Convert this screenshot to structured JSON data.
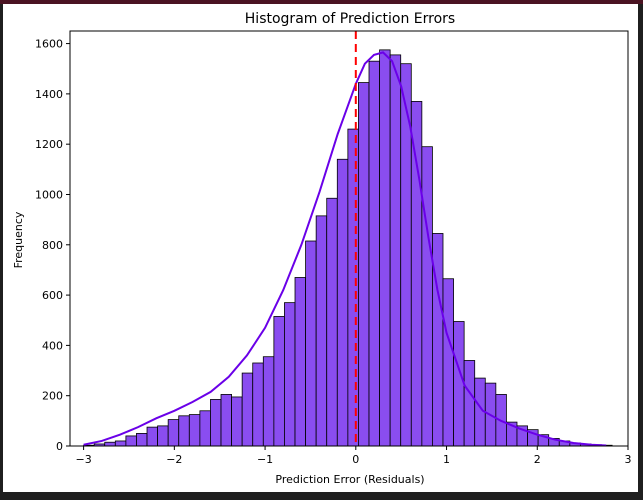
{
  "chart_data": {
    "type": "bar",
    "title": "Histogram of Prediction Errors",
    "xlabel": "Prediction Error (Residuals)",
    "ylabel": "Frequency",
    "xlim": [
      -3.15,
      3.0
    ],
    "ylim": [
      0,
      1650
    ],
    "xticks": [
      -3,
      -2,
      -1,
      0,
      1,
      2,
      3
    ],
    "xtick_labels": [
      "−3",
      "−2",
      "−1",
      "0",
      "1",
      "2",
      "3"
    ],
    "yticks": [
      0,
      200,
      400,
      600,
      800,
      1000,
      1200,
      1400,
      1600
    ],
    "ytick_labels": [
      "0",
      "200",
      "400",
      "600",
      "800",
      "1000",
      "1200",
      "1400",
      "1600"
    ],
    "grid": false,
    "bin_start": -3.0,
    "bin_width": 0.1165,
    "values": [
      3,
      8,
      15,
      20,
      40,
      50,
      75,
      80,
      105,
      120,
      125,
      140,
      185,
      205,
      195,
      290,
      330,
      355,
      515,
      570,
      670,
      815,
      915,
      985,
      1140,
      1260,
      1445,
      1530,
      1575,
      1555,
      1520,
      1370,
      1190,
      845,
      665,
      495,
      340,
      270,
      250,
      205,
      95,
      80,
      65,
      45,
      30,
      20,
      12,
      8,
      5,
      3
    ],
    "kde": {
      "x": [
        -3.0,
        -2.8,
        -2.6,
        -2.4,
        -2.2,
        -2.0,
        -1.8,
        -1.6,
        -1.4,
        -1.2,
        -1.0,
        -0.8,
        -0.6,
        -0.4,
        -0.2,
        0.0,
        0.1,
        0.2,
        0.3,
        0.4,
        0.5,
        0.6,
        0.7,
        0.8,
        0.9,
        1.0,
        1.2,
        1.4,
        1.6,
        1.8,
        2.0,
        2.2,
        2.4,
        2.6,
        2.76
      ],
      "y": [
        5,
        20,
        45,
        75,
        110,
        140,
        175,
        215,
        275,
        360,
        470,
        620,
        800,
        1010,
        1240,
        1440,
        1520,
        1555,
        1565,
        1530,
        1430,
        1270,
        1060,
        830,
        620,
        450,
        240,
        140,
        100,
        70,
        45,
        25,
        12,
        5,
        2
      ]
    },
    "reference_line": {
      "x": 0,
      "color": "#ff0000",
      "style": "dashed"
    },
    "bar_color": "#8a4df0",
    "bar_edge_color": "#000000",
    "kde_color": "#6a00e8"
  }
}
